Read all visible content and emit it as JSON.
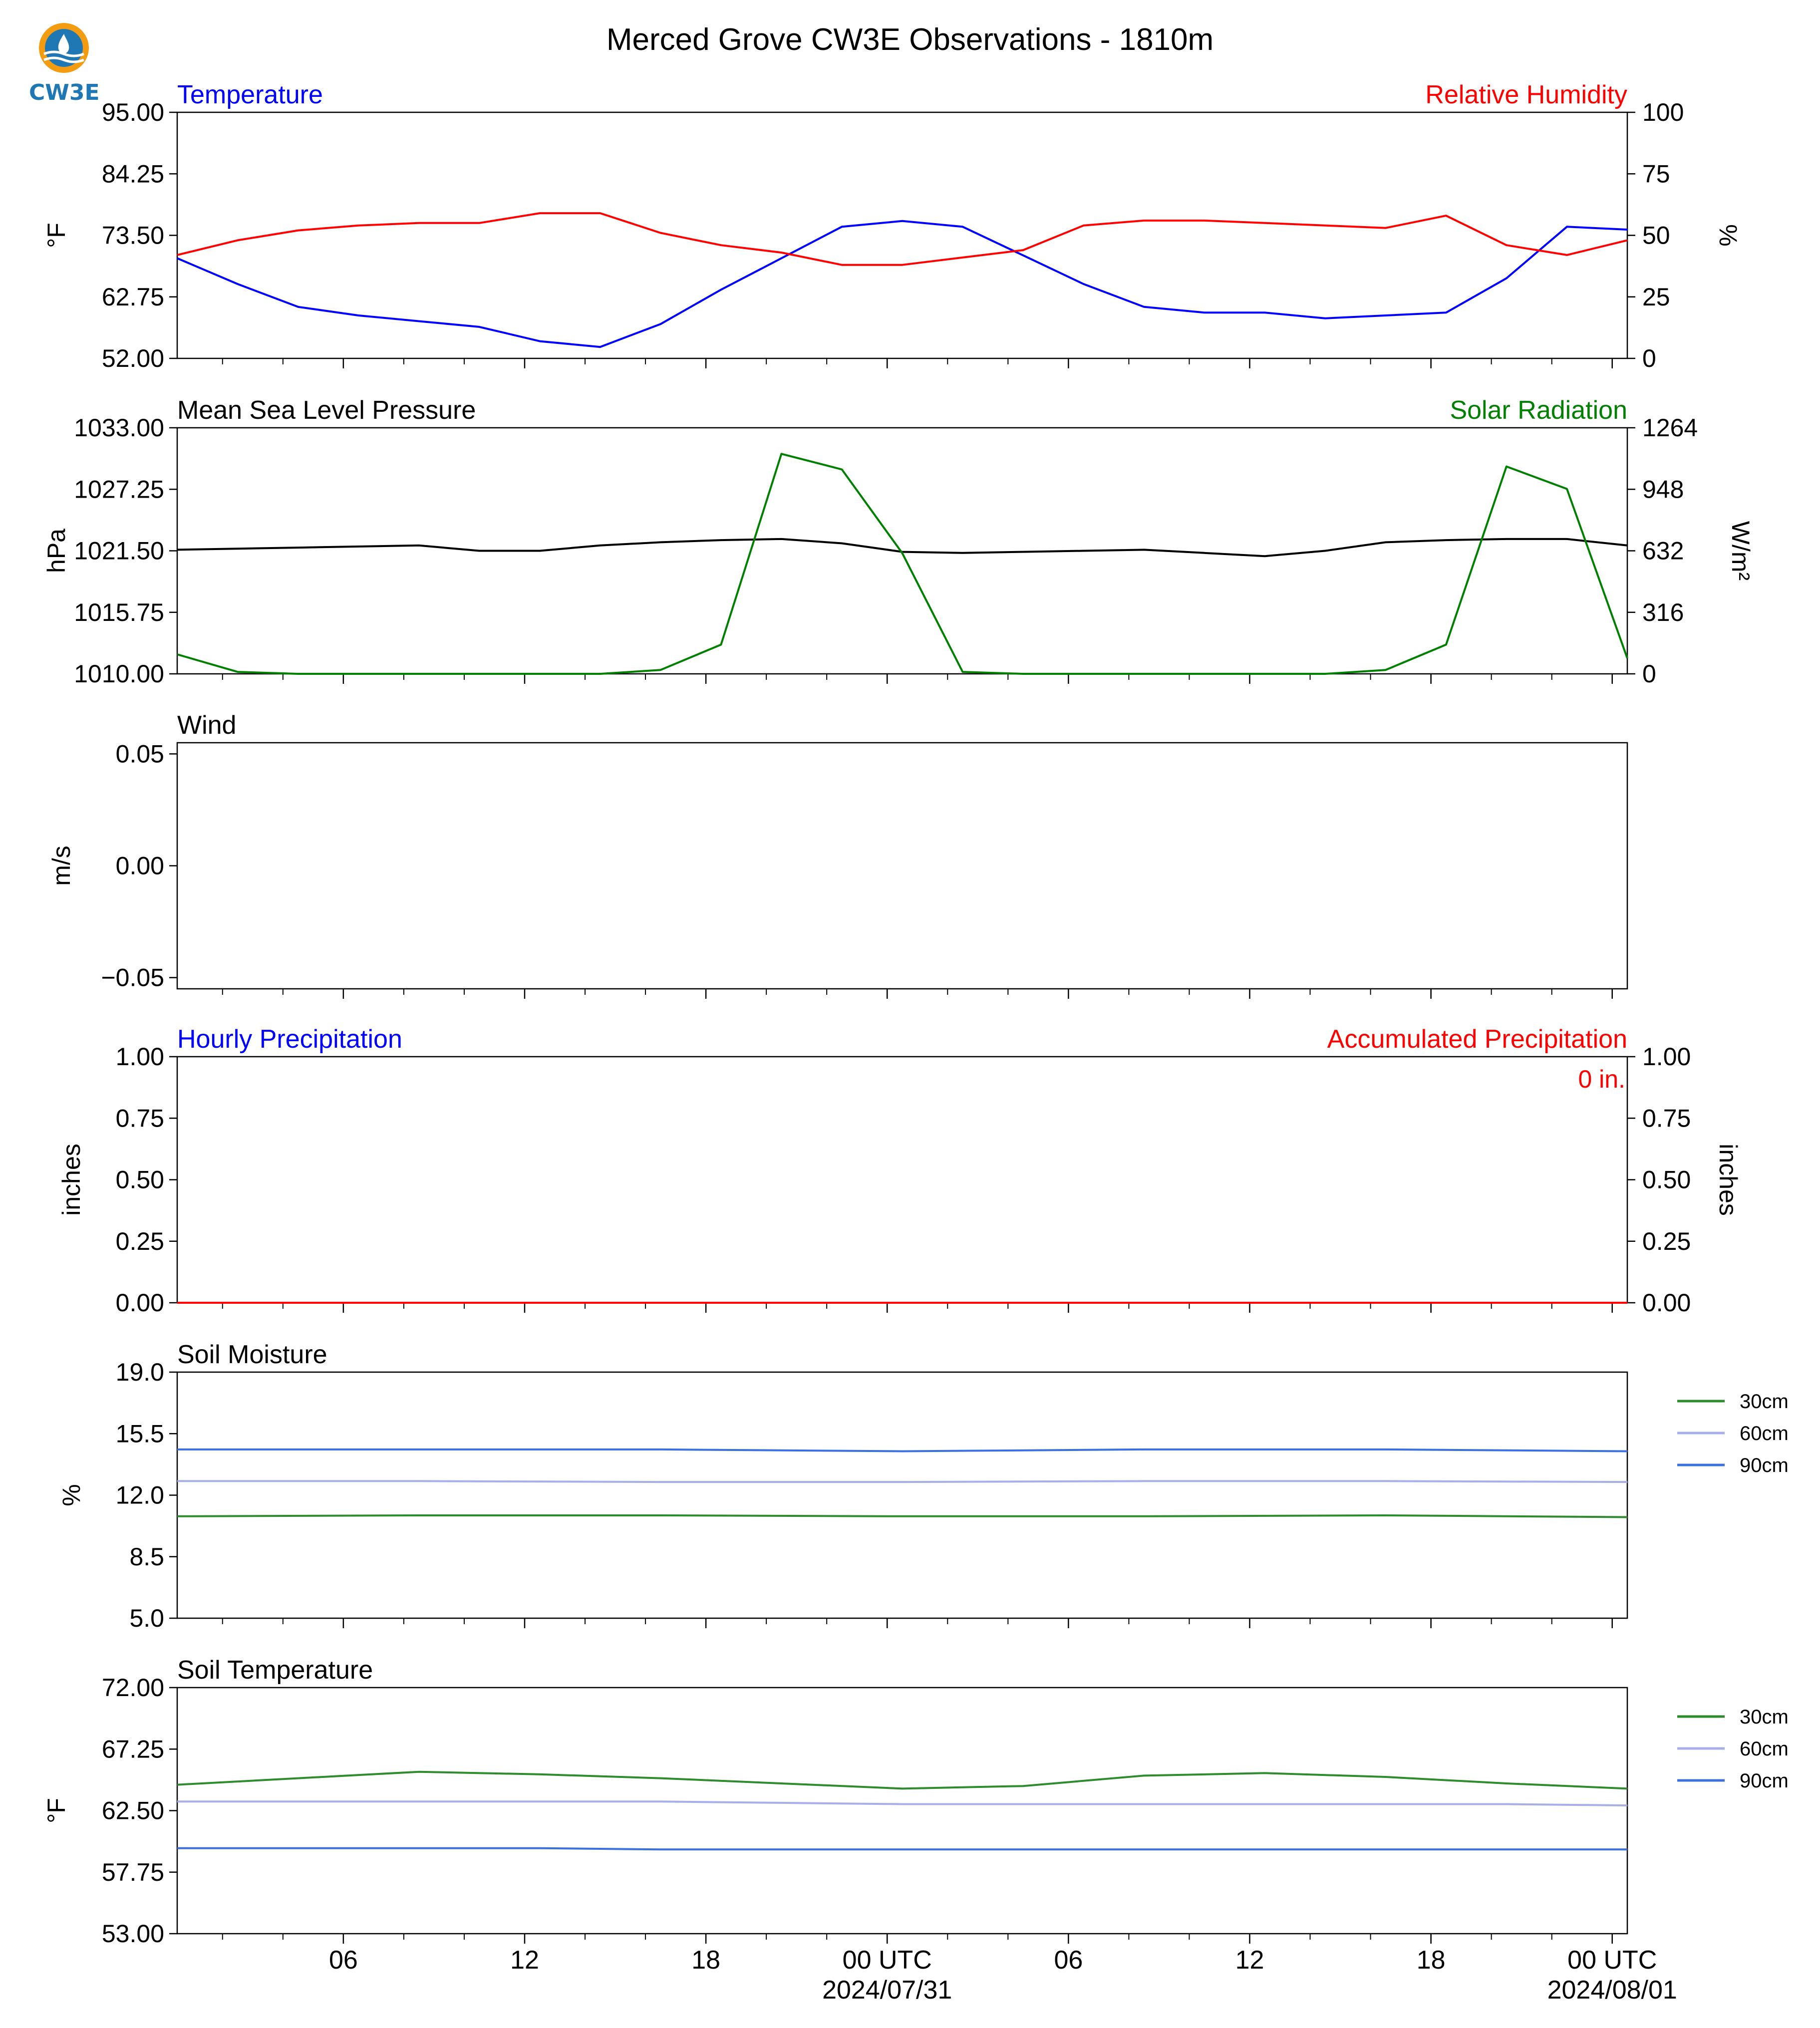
{
  "title": "Merced Grove CW3E Observations - 1810m",
  "logo": {
    "text": "CW3E"
  },
  "x_axis": {
    "tick_labels": [
      "06",
      "12",
      "18",
      "00 UTC",
      "06",
      "12",
      "18",
      "00 UTC"
    ],
    "date_labels": [
      "2024/07/31",
      "2024/08/01"
    ]
  },
  "colors": {
    "blue": "#0000ff",
    "red": "#ff0000",
    "green": "#008000",
    "black": "#000000",
    "soil_30": "#2e8b2e",
    "soil_60": "#a7aee8",
    "soil_90": "#3c6fe0"
  },
  "chart_data": [
    {
      "type": "line",
      "title_left": "Temperature",
      "title_right": "Relative Humidity",
      "ylabel_left": "°F",
      "ylabel_right": "%",
      "ylim_left": [
        52.0,
        95.0
      ],
      "ylim_right": [
        0,
        100
      ],
      "yticks_left": [
        "95.00",
        "84.25",
        "73.50",
        "62.75",
        "52.00"
      ],
      "yticks_right": [
        "100",
        "75",
        "50",
        "25",
        "0"
      ],
      "x_hours": [
        0,
        2,
        4,
        6,
        8,
        10,
        12,
        14,
        16,
        18,
        20,
        22,
        24,
        26,
        28,
        30,
        32,
        34,
        36,
        38,
        40,
        42,
        44,
        46,
        48
      ],
      "series": [
        {
          "name": "Temperature",
          "axis": "left",
          "values": [
            69.5,
            65,
            61,
            59.5,
            58.5,
            57.5,
            55,
            54,
            58,
            64,
            69.5,
            75,
            76,
            75,
            70,
            65,
            61,
            60,
            60,
            59,
            59.5,
            60,
            66,
            75,
            74.5
          ]
        },
        {
          "name": "Relative Humidity",
          "axis": "right",
          "values": [
            42,
            48,
            52,
            54,
            55,
            55,
            59,
            59,
            51,
            46,
            43,
            38,
            38,
            41,
            44,
            54,
            56,
            56,
            55,
            54,
            53,
            58,
            46,
            42,
            48
          ]
        }
      ]
    },
    {
      "type": "line",
      "title_left": "Mean Sea Level Pressure",
      "title_right": "Solar Radiation",
      "ylabel_left": "hPa",
      "ylabel_right": "W/m²",
      "ylim_left": [
        1010.0,
        1033.0
      ],
      "ylim_right": [
        0,
        1264
      ],
      "yticks_left": [
        "1033.00",
        "1027.25",
        "1021.50",
        "1015.75",
        "1010.00"
      ],
      "yticks_right": [
        "1264",
        "948",
        "632",
        "316",
        "0"
      ],
      "x_hours": [
        0,
        2,
        4,
        6,
        8,
        10,
        12,
        14,
        16,
        18,
        20,
        22,
        24,
        26,
        28,
        30,
        32,
        34,
        36,
        38,
        40,
        42,
        44,
        46,
        48
      ],
      "series": [
        {
          "name": "Mean Sea Level Pressure",
          "axis": "left",
          "values": [
            1021.6,
            1021.7,
            1021.8,
            1021.9,
            1022.0,
            1021.5,
            1021.5,
            1022.0,
            1022.3,
            1022.5,
            1022.6,
            1022.2,
            1021.4,
            1021.3,
            1021.4,
            1021.5,
            1021.6,
            1021.3,
            1021.0,
            1021.5,
            1022.3,
            1022.5,
            1022.6,
            1022.6,
            1022.0
          ]
        },
        {
          "name": "Solar Radiation",
          "axis": "right",
          "values": [
            100,
            10,
            0,
            0,
            0,
            0,
            0,
            0,
            20,
            150,
            1130,
            1050,
            620,
            10,
            0,
            0,
            0,
            0,
            0,
            0,
            20,
            150,
            1065,
            950,
            80
          ]
        }
      ]
    },
    {
      "type": "line",
      "title_left": "Wind",
      "ylabel_left": "m/s",
      "ylim_left": [
        -0.055,
        0.055
      ],
      "yticks_left": [
        "0.05",
        "0.00",
        "−0.05"
      ],
      "series": []
    },
    {
      "type": "line",
      "title_left": "Hourly Precipitation",
      "title_right": "Accumulated Precipitation",
      "annotation": "0 in.",
      "ylabel_left": "inches",
      "ylabel_right": "inches",
      "ylim_left": [
        0,
        1.0
      ],
      "ylim_right": [
        0,
        1.0
      ],
      "yticks_left": [
        "1.00",
        "0.75",
        "0.50",
        "0.25",
        "0.00"
      ],
      "yticks_right": [
        "1.00",
        "0.75",
        "0.50",
        "0.25",
        "0.00"
      ],
      "x_hours": [
        0,
        48
      ],
      "series": [
        {
          "name": "Hourly Precipitation",
          "axis": "left",
          "values": [
            0,
            0
          ]
        },
        {
          "name": "Accumulated Precipitation",
          "axis": "right",
          "values": [
            0,
            0
          ]
        }
      ]
    },
    {
      "type": "line",
      "title_left": "Soil Moisture",
      "ylabel_left": "%",
      "ylim_left": [
        5.0,
        19.0
      ],
      "yticks_left": [
        "19.0",
        "15.5",
        "12.0",
        "8.5",
        "5.0"
      ],
      "legend": [
        "30cm",
        "60cm",
        "90cm"
      ],
      "x_hours": [
        0,
        8,
        16,
        24,
        32,
        40,
        48
      ],
      "series": [
        {
          "name": "30cm",
          "values": [
            10.8,
            10.85,
            10.85,
            10.8,
            10.8,
            10.85,
            10.75
          ]
        },
        {
          "name": "60cm",
          "values": [
            12.8,
            12.8,
            12.75,
            12.75,
            12.8,
            12.8,
            12.75
          ]
        },
        {
          "name": "90cm",
          "values": [
            14.6,
            14.6,
            14.6,
            14.5,
            14.6,
            14.6,
            14.5
          ]
        }
      ]
    },
    {
      "type": "line",
      "title_left": "Soil Temperature",
      "ylabel_left": "°F",
      "ylim_left": [
        53.0,
        72.0
      ],
      "yticks_left": [
        "72.00",
        "67.25",
        "62.50",
        "57.75",
        "53.00"
      ],
      "legend": [
        "30cm",
        "60cm",
        "90cm"
      ],
      "x_hours": [
        0,
        4,
        8,
        12,
        16,
        20,
        24,
        28,
        32,
        36,
        40,
        44,
        48
      ],
      "series": [
        {
          "name": "30cm",
          "values": [
            64.5,
            65.0,
            65.5,
            65.3,
            65.0,
            64.6,
            64.2,
            64.4,
            65.2,
            65.4,
            65.1,
            64.6,
            64.2
          ]
        },
        {
          "name": "60cm",
          "values": [
            63.2,
            63.2,
            63.2,
            63.2,
            63.2,
            63.1,
            63.0,
            63.0,
            63.0,
            63.0,
            63.0,
            63.0,
            62.9
          ]
        },
        {
          "name": "90cm",
          "values": [
            59.6,
            59.6,
            59.6,
            59.6,
            59.5,
            59.5,
            59.5,
            59.5,
            59.5,
            59.5,
            59.5,
            59.5,
            59.5
          ]
        }
      ]
    }
  ]
}
